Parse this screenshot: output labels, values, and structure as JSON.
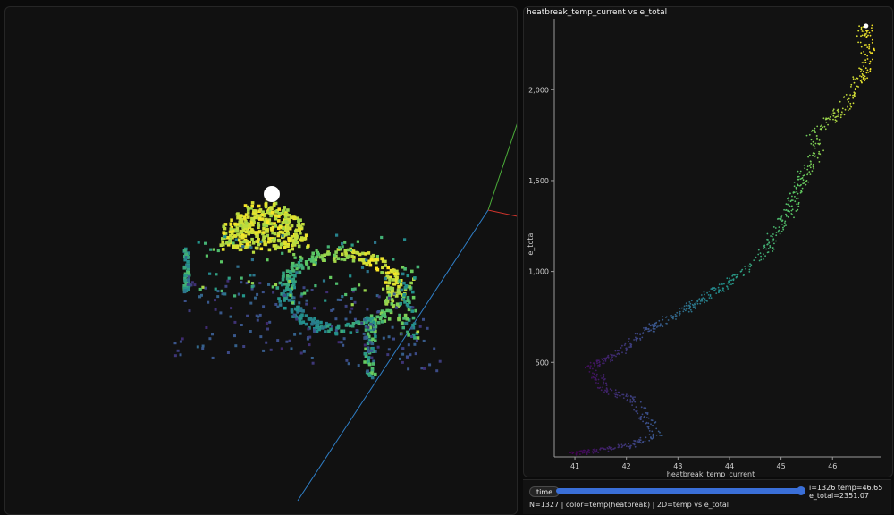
{
  "viewer3d": {
    "axis_colors": {
      "x": "#d0342c",
      "y": "#4caf3a",
      "z": "#2f7fc8"
    },
    "marker_color": "#ffffff"
  },
  "chart_data": {
    "type": "scatter",
    "title": "heatbreak_temp_current vs e_total",
    "xlabel": "heatbreak_temp_current",
    "ylabel": "e_total",
    "xlim": [
      40.6,
      46.95
    ],
    "ylim": [
      -20,
      2390
    ],
    "x_ticks": [
      41,
      42,
      43,
      44,
      45,
      46
    ],
    "y_ticks": [
      500,
      1000,
      1500,
      2000
    ],
    "y_tick_labels": [
      "500",
      "1,000",
      "1,500",
      "2,000"
    ],
    "grid": false,
    "colormap": "viridis",
    "color_by": "heatbreak temp",
    "n_points": 1327,
    "highlight_point": {
      "x": 46.65,
      "y": 2351.07
    },
    "path": [
      [
        41.0,
        0
      ],
      [
        42.0,
        40
      ],
      [
        42.6,
        100
      ],
      [
        42.4,
        180
      ],
      [
        42.2,
        290
      ],
      [
        41.6,
        350
      ],
      [
        41.5,
        400
      ],
      [
        41.3,
        470
      ],
      [
        41.8,
        540
      ],
      [
        42.3,
        660
      ],
      [
        43.2,
        800
      ],
      [
        44.0,
        940
      ],
      [
        44.3,
        1000
      ],
      [
        44.8,
        1140
      ],
      [
        44.9,
        1220
      ],
      [
        45.2,
        1340
      ],
      [
        45.3,
        1440
      ],
      [
        45.5,
        1560
      ],
      [
        45.7,
        1650
      ],
      [
        45.6,
        1760
      ],
      [
        45.9,
        1820
      ],
      [
        46.2,
        1890
      ],
      [
        46.4,
        2000
      ],
      [
        46.6,
        2100
      ],
      [
        46.7,
        2200
      ],
      [
        46.6,
        2300
      ],
      [
        46.65,
        2351
      ]
    ]
  },
  "controls": {
    "time_label": "time",
    "slider_value": 1.0,
    "readout_line1": "i=1326 temp=46.65",
    "readout_line2": "e_total=2351.07",
    "status": "N=1327 | color=temp(heatbreak) | 2D=temp vs e_total",
    "slider_color": "#3a6fd8",
    "slider_track_color": "#2e4f99"
  }
}
